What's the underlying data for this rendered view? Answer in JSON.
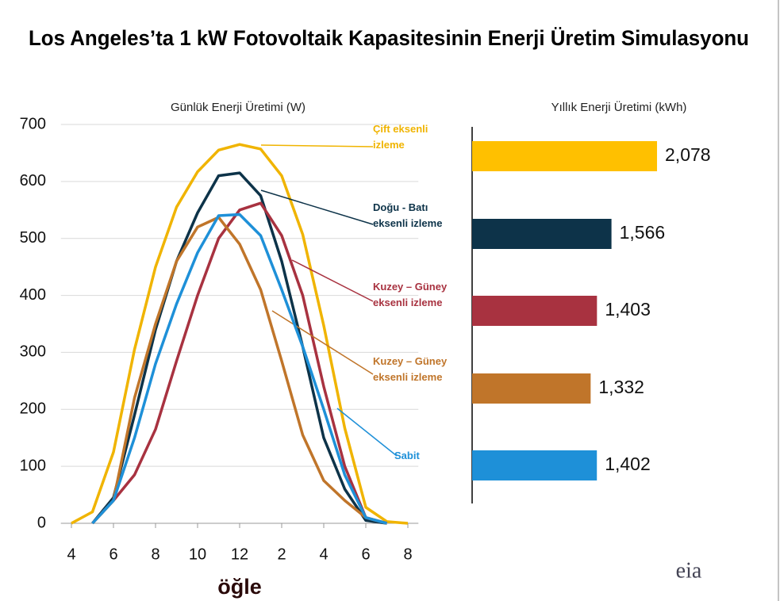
{
  "title": "Los Angeles’ta 1 kW Fotovoltaik Kapasitesinin Enerji Üretim Simulasyonu",
  "logo": "eia",
  "chart_data": [
    {
      "type": "line",
      "subtitle": "Günlük Enerji Üretimi (W)",
      "xlabel": "öğle",
      "x": [
        4,
        5,
        6,
        7,
        8,
        9,
        10,
        11,
        12,
        13,
        14,
        15,
        16,
        17,
        18,
        19,
        20
      ],
      "xlim": [
        3.5,
        20.5
      ],
      "xticks": [
        4,
        6,
        8,
        10,
        12,
        {
          "value": 14,
          "label": "2"
        },
        {
          "value": 16,
          "label": "4"
        },
        {
          "value": 18,
          "label": "6"
        },
        {
          "value": 20,
          "label": "8"
        }
      ],
      "ylim": [
        0,
        700
      ],
      "yticks": [
        0,
        100,
        200,
        300,
        400,
        500,
        600,
        700
      ],
      "grid": true,
      "series": [
        {
          "name": "Çift eksenli izleme",
          "color": "#f0b400",
          "values": [
            0,
            20,
            125,
            305,
            450,
            555,
            617,
            655,
            665,
            657,
            610,
            507,
            347,
            167,
            28,
            3,
            0
          ]
        },
        {
          "name": "Doğu - Batı eksenli izleme",
          "color": "#0d3349",
          "values": [
            null,
            0,
            45,
            190,
            340,
            460,
            545,
            610,
            615,
            575,
            460,
            310,
            150,
            60,
            5,
            0,
            null
          ]
        },
        {
          "name": "Kuzey – Güney eksenli izleme",
          "color": "#a83240",
          "values": [
            null,
            0,
            40,
            85,
            165,
            285,
            400,
            500,
            550,
            562,
            505,
            400,
            240,
            100,
            10,
            0,
            null
          ]
        },
        {
          "name": "Kuzey – Güney eksenli izleme",
          "color": "#c0752a",
          "values": [
            null,
            0,
            40,
            220,
            350,
            460,
            520,
            537,
            490,
            410,
            285,
            155,
            75,
            40,
            10,
            0,
            null
          ]
        },
        {
          "name": "Sabit",
          "color": "#1e90d8",
          "values": [
            null,
            0,
            40,
            150,
            280,
            385,
            475,
            540,
            542,
            505,
            410,
            310,
            200,
            85,
            10,
            0,
            null
          ]
        }
      ]
    },
    {
      "type": "bar",
      "subtitle": "Yıllık Enerji Üretimi (kWh)",
      "xlim": [
        0,
        2200
      ],
      "values": [
        2078,
        1566,
        1403,
        1332,
        1402
      ],
      "value_labels": [
        "2,078",
        "1,566",
        "1,403",
        "1,332",
        "1,402"
      ],
      "colors": [
        "#ffc000",
        "#0d3349",
        "#a83240",
        "#c0752a",
        "#1e90d8"
      ]
    }
  ]
}
